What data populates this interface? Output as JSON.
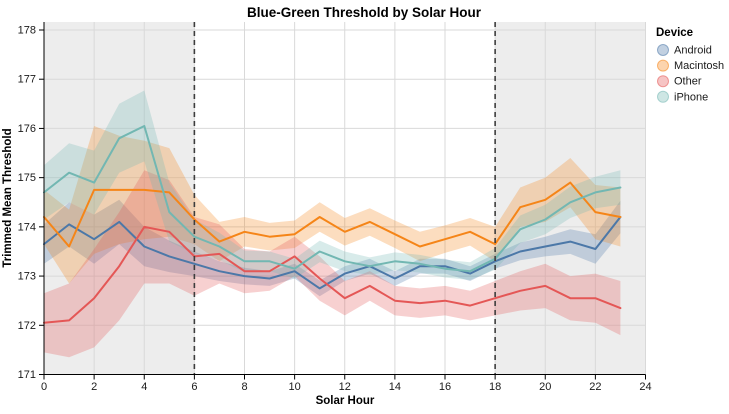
{
  "title": "Blue-Green Threshold by Solar Hour",
  "legend": {
    "title": "Device",
    "items": [
      {
        "label": "Android",
        "color": "#4c78a8"
      },
      {
        "label": "Macintosh",
        "color": "#f58518"
      },
      {
        "label": "Other",
        "color": "#e45756"
      },
      {
        "label": "iPhone",
        "color": "#72b7b2"
      }
    ]
  },
  "chart_data": {
    "type": "line",
    "title": "Blue-Green Threshold by Solar Hour",
    "xlabel": "Solar Hour",
    "ylabel": "Trimmed Mean Threshold",
    "xlim": [
      0,
      24
    ],
    "ylim": [
      171,
      178
    ],
    "x_ticks": [
      0,
      2,
      4,
      6,
      8,
      10,
      12,
      14,
      16,
      18,
      20,
      22,
      24
    ],
    "y_ticks": [
      171,
      172,
      173,
      174,
      175,
      176,
      177,
      178
    ],
    "grid": true,
    "legend_position": "right",
    "legend_title": "Device",
    "band_opacity": 0.28,
    "night_fill": "#ededed",
    "gridline_color": "#d9d9d9",
    "rule_color": "#3d3d3d",
    "shaded_regions": [
      {
        "x0": 0,
        "x1": 6
      },
      {
        "x0": 18,
        "x1": 24
      }
    ],
    "reference_lines": [
      {
        "x": 6,
        "style": "dashed"
      },
      {
        "x": 18,
        "style": "dashed"
      }
    ],
    "x": [
      0,
      1,
      2,
      3,
      4,
      5,
      6,
      7,
      8,
      9,
      10,
      11,
      12,
      13,
      14,
      15,
      16,
      17,
      18,
      19,
      20,
      21,
      22,
      23
    ],
    "series": [
      {
        "name": "Android",
        "color": "#4c78a8",
        "values": [
          173.65,
          174.05,
          173.75,
          174.1,
          173.6,
          173.4,
          173.25,
          173.1,
          173.0,
          172.95,
          173.1,
          172.75,
          173.05,
          173.2,
          172.95,
          173.2,
          173.2,
          173.05,
          173.3,
          173.5,
          173.6,
          173.7,
          173.55,
          174.2
        ],
        "band_halfwidth": [
          0.4,
          0.45,
          0.5,
          0.45,
          0.4,
          0.32,
          0.25,
          0.2,
          0.17,
          0.15,
          0.15,
          0.16,
          0.15,
          0.15,
          0.15,
          0.15,
          0.15,
          0.15,
          0.15,
          0.18,
          0.2,
          0.25,
          0.3,
          0.33
        ]
      },
      {
        "name": "Macintosh",
        "color": "#f58518",
        "values": [
          174.2,
          173.6,
          174.75,
          174.75,
          174.75,
          174.7,
          174.15,
          173.7,
          173.9,
          173.8,
          173.85,
          174.2,
          173.9,
          174.1,
          173.85,
          173.6,
          173.75,
          173.9,
          173.65,
          174.4,
          174.55,
          174.9,
          174.3,
          174.2
        ],
        "band_halfwidth": [
          0.55,
          0.75,
          1.3,
          1.1,
          1.0,
          0.9,
          0.5,
          0.4,
          0.3,
          0.28,
          0.28,
          0.3,
          0.28,
          0.28,
          0.28,
          0.3,
          0.28,
          0.28,
          0.35,
          0.4,
          0.45,
          0.5,
          0.55,
          0.6
        ]
      },
      {
        "name": "Other",
        "color": "#e45756",
        "values": [
          172.05,
          172.1,
          172.55,
          173.2,
          174.0,
          173.9,
          173.4,
          173.45,
          173.1,
          173.1,
          173.4,
          172.95,
          172.55,
          172.8,
          172.5,
          172.45,
          172.5,
          172.4,
          172.55,
          172.7,
          172.8,
          172.55,
          172.55,
          172.35
        ],
        "band_halfwidth": [
          0.6,
          0.75,
          1.0,
          1.1,
          1.15,
          1.05,
          0.8,
          0.6,
          0.45,
          0.4,
          0.4,
          0.45,
          0.35,
          0.3,
          0.3,
          0.3,
          0.3,
          0.3,
          0.35,
          0.4,
          0.45,
          0.45,
          0.5,
          0.55
        ]
      },
      {
        "name": "iPhone",
        "color": "#72b7b2",
        "values": [
          174.7,
          175.1,
          174.9,
          175.8,
          176.05,
          174.3,
          173.8,
          173.6,
          173.3,
          173.3,
          173.15,
          173.5,
          173.3,
          173.2,
          173.3,
          173.25,
          173.15,
          173.1,
          173.35,
          173.95,
          174.15,
          174.5,
          174.7,
          174.8
        ],
        "band_halfwidth": [
          0.55,
          0.6,
          0.65,
          0.7,
          0.72,
          0.6,
          0.35,
          0.28,
          0.22,
          0.2,
          0.2,
          0.22,
          0.2,
          0.18,
          0.18,
          0.18,
          0.18,
          0.18,
          0.22,
          0.28,
          0.3,
          0.32,
          0.32,
          0.35
        ]
      }
    ]
  }
}
